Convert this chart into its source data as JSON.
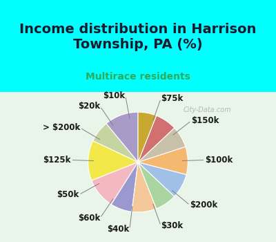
{
  "title": "Income distribution in Harrison\nTownship, PA (%)",
  "subtitle": "Multirace residents",
  "watermark": "City-Data.com",
  "labels": [
    "$75k",
    "$150k",
    "$100k",
    "$200k",
    "$30k",
    "$40k",
    "$60k",
    "$50k",
    "$125k",
    "> $200k",
    "$20k",
    "$10k"
  ],
  "values": [
    11,
    7,
    13,
    10,
    7,
    8,
    7,
    8,
    9,
    7,
    7,
    6
  ],
  "colors": [
    "#a89bc8",
    "#c5d4a0",
    "#f2e84a",
    "#f4b8c0",
    "#9999d0",
    "#f5c89a",
    "#aad4a0",
    "#a0c0e8",
    "#f5b870",
    "#c8c0a8",
    "#d07070",
    "#c8a830"
  ],
  "bg_top": "#00ffff",
  "bg_chart": "#e8f5e8",
  "title_color": "#1a1a2e",
  "subtitle_color": "#2eaa5a",
  "startangle": 90,
  "label_fontsize": 8.5,
  "title_fontsize": 14
}
